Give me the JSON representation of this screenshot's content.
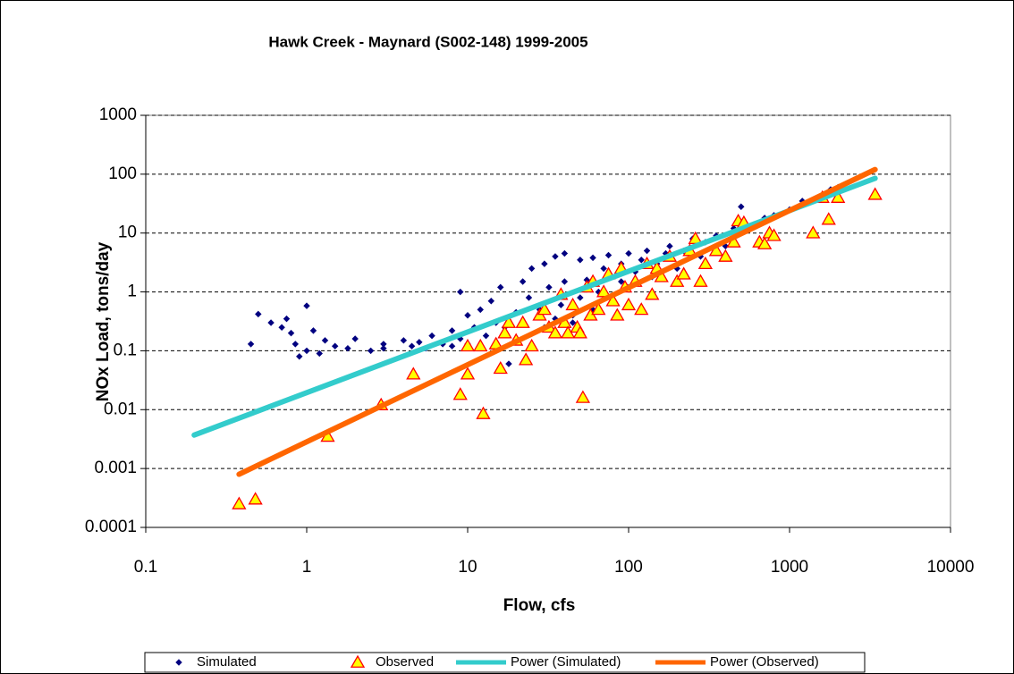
{
  "chart_data": {
    "type": "scatter",
    "title": "Hawk Creek - Maynard (S002-148) 1999-2005",
    "x_label": "Flow, cfs",
    "y_label": "NOx Load, tons/day",
    "log_x": true,
    "log_y": true,
    "grid": true,
    "legend_position": "bottom",
    "xlim": [
      0.1,
      10000
    ],
    "xticks": [
      0.1,
      1,
      10,
      100,
      1000,
      10000
    ],
    "ylim": [
      0.0001,
      1000
    ],
    "yticks": [
      0.0001,
      0.001,
      0.01,
      0.1,
      1,
      10,
      100,
      1000
    ],
    "series": [
      {
        "name": "Simulated",
        "kind": "points",
        "marker": "diamond",
        "color": "#000080",
        "x": [
          0.45,
          0.5,
          0.6,
          0.7,
          0.75,
          0.8,
          0.85,
          0.9,
          1.0,
          1.0,
          1.1,
          1.2,
          1.3,
          1.5,
          1.8,
          2,
          2.5,
          3,
          3,
          4,
          4.5,
          5,
          5.5,
          6,
          7,
          8,
          8,
          9,
          9,
          10,
          10,
          11,
          12,
          13,
          14,
          15,
          15,
          16,
          17,
          18,
          20,
          20,
          22,
          22,
          24,
          25,
          25,
          28,
          30,
          30,
          32,
          35,
          35,
          38,
          40,
          40,
          45,
          45,
          50,
          50,
          55,
          60,
          60,
          65,
          70,
          75,
          80,
          90,
          90,
          100,
          100,
          110,
          120,
          130,
          140,
          150,
          170,
          180,
          200,
          220,
          250,
          280,
          300,
          350,
          400,
          450,
          500,
          500,
          600,
          700,
          800,
          1000,
          1200,
          1500,
          1800,
          2000
        ],
        "values": [
          0.13,
          0.42,
          0.3,
          0.25,
          0.35,
          0.2,
          0.13,
          0.08,
          0.58,
          0.1,
          0.22,
          0.09,
          0.15,
          0.12,
          0.11,
          0.16,
          0.1,
          0.13,
          0.11,
          0.15,
          0.12,
          0.14,
          0.11,
          0.18,
          0.13,
          0.22,
          0.12,
          1.0,
          0.16,
          0.4,
          0.13,
          0.25,
          0.5,
          0.18,
          0.7,
          0.3,
          0.13,
          1.2,
          0.25,
          0.06,
          0.45,
          0.16,
          1.5,
          0.3,
          0.8,
          0.12,
          2.5,
          0.5,
          3,
          0.25,
          1.2,
          4,
          0.35,
          0.6,
          4.5,
          1.5,
          0.4,
          0.3,
          3.5,
          0.8,
          1.6,
          3.8,
          0.5,
          1,
          2.5,
          4.2,
          0.7,
          3,
          1.5,
          4.5,
          1.2,
          2.2,
          3.5,
          5,
          1.8,
          3,
          4.5,
          6,
          2.5,
          5,
          8,
          4,
          7,
          9,
          6,
          12,
          28,
          10,
          14,
          18,
          20,
          25,
          35,
          40,
          55,
          60
        ]
      },
      {
        "name": "Observed",
        "kind": "points",
        "marker": "triangle",
        "color": "#ffff00",
        "edge_color": "#ff0000",
        "x": [
          0.38,
          0.48,
          1.35,
          2.9,
          4.6,
          9,
          10,
          10,
          12,
          12.5,
          15,
          16,
          17,
          18,
          20,
          22,
          23,
          25,
          28,
          30,
          32,
          35,
          38,
          40,
          42,
          45,
          48,
          50,
          52,
          55,
          58,
          60,
          65,
          70,
          75,
          80,
          85,
          90,
          95,
          100,
          110,
          120,
          130,
          140,
          150,
          160,
          180,
          200,
          220,
          240,
          260,
          280,
          300,
          350,
          400,
          450,
          480,
          520,
          650,
          700,
          750,
          800,
          1400,
          1600,
          1750,
          2000,
          3400
        ],
        "values": [
          0.00025,
          0.0003,
          0.0035,
          0.012,
          0.04,
          0.018,
          0.04,
          0.12,
          0.12,
          0.0085,
          0.13,
          0.05,
          0.2,
          0.3,
          0.15,
          0.3,
          0.07,
          0.12,
          0.4,
          0.5,
          0.25,
          0.2,
          0.9,
          0.3,
          0.2,
          0.6,
          0.25,
          0.2,
          0.016,
          1.2,
          0.4,
          1.5,
          0.5,
          1,
          2,
          0.7,
          0.4,
          2.5,
          1.2,
          0.6,
          1.5,
          0.5,
          3,
          0.9,
          2.5,
          1.8,
          4,
          1.5,
          2,
          5,
          8,
          1.5,
          3,
          5,
          4,
          7,
          16,
          15,
          7,
          6.5,
          10,
          9,
          10,
          40,
          17,
          40,
          45
        ]
      },
      {
        "name": "Power (Simulated)",
        "kind": "line",
        "color": "#33cccc",
        "x": [
          0.2,
          3400
        ],
        "values": [
          0.0037,
          85
        ]
      },
      {
        "name": "Power (Observed)",
        "kind": "line",
        "color": "#ff6600",
        "x": [
          0.38,
          3400
        ],
        "values": [
          0.0008,
          120
        ]
      }
    ]
  }
}
